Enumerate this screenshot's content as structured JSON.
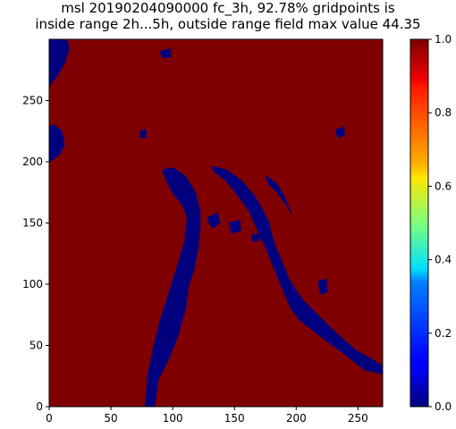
{
  "chart_data": {
    "type": "heatmap",
    "title_line1": "msl 20190204090000 fc_3h, 92.78% gridpoints is",
    "title_line2": "inside range 2h...5h, outside range field max value 44.35",
    "xlim": [
      0,
      270
    ],
    "ylim": [
      0,
      300
    ],
    "x_ticks": [
      0,
      50,
      100,
      150,
      200,
      250
    ],
    "y_ticks": [
      0,
      50,
      100,
      150,
      200,
      250
    ],
    "colorbar": {
      "colormap": "jet",
      "range": [
        0.0,
        1.0
      ],
      "ticks": [
        "0.0",
        "0.2",
        "0.4",
        "0.6",
        "0.8",
        "1.0"
      ]
    },
    "background_value": 1.0,
    "region_value": 0.0,
    "colors": {
      "high": "#7f0000",
      "low": "#00007f"
    },
    "regions_value0": [
      {
        "name": "western-band",
        "polygon": [
          [
            78,
            0
          ],
          [
            85,
            0
          ],
          [
            88,
            22
          ],
          [
            97,
            40
          ],
          [
            104,
            58
          ],
          [
            110,
            80
          ],
          [
            113,
            100
          ],
          [
            117,
            112
          ],
          [
            120,
            128
          ],
          [
            122,
            145
          ],
          [
            122,
            160
          ],
          [
            118,
            175
          ],
          [
            110,
            188
          ],
          [
            100,
            195
          ],
          [
            92,
            193
          ],
          [
            95,
            185
          ],
          [
            100,
            175
          ],
          [
            108,
            165
          ],
          [
            112,
            155
          ],
          [
            110,
            135
          ],
          [
            104,
            115
          ],
          [
            97,
            92
          ],
          [
            90,
            70
          ],
          [
            84,
            45
          ],
          [
            80,
            25
          ]
        ]
      },
      {
        "name": "eastern-band",
        "polygon": [
          [
            270,
            27
          ],
          [
            256,
            30
          ],
          [
            238,
            44
          ],
          [
            222,
            56
          ],
          [
            204,
            70
          ],
          [
            196,
            80
          ],
          [
            190,
            94
          ],
          [
            186,
            104
          ],
          [
            182,
            114
          ],
          [
            178,
            124
          ],
          [
            170,
            142
          ],
          [
            162,
            160
          ],
          [
            152,
            174
          ],
          [
            142,
            186
          ],
          [
            134,
            192
          ],
          [
            132,
            196
          ],
          [
            144,
            193
          ],
          [
            156,
            184
          ],
          [
            166,
            172
          ],
          [
            172,
            162
          ],
          [
            178,
            150
          ],
          [
            180,
            140
          ],
          [
            184,
            128
          ],
          [
            190,
            114
          ],
          [
            194,
            104
          ],
          [
            200,
            94
          ],
          [
            206,
            86
          ],
          [
            214,
            78
          ],
          [
            230,
            62
          ],
          [
            248,
            46
          ],
          [
            262,
            38
          ],
          [
            270,
            33
          ]
        ]
      },
      {
        "name": "eastern-band-tail",
        "polygon": [
          [
            176,
            188
          ],
          [
            184,
            182
          ],
          [
            190,
            172
          ],
          [
            194,
            162
          ],
          [
            196,
            158
          ],
          [
            194,
            162
          ],
          [
            190,
            168
          ],
          [
            184,
            176
          ],
          [
            178,
            182
          ]
        ]
      },
      {
        "name": "top-left-patch",
        "polygon": [
          [
            0,
            300
          ],
          [
            14,
            300
          ],
          [
            16,
            292
          ],
          [
            12,
            280
          ],
          [
            6,
            270
          ],
          [
            0,
            262
          ]
        ]
      },
      {
        "name": "left-blob",
        "polygon": [
          [
            0,
            200
          ],
          [
            8,
            206
          ],
          [
            12,
            214
          ],
          [
            10,
            225
          ],
          [
            4,
            230
          ],
          [
            0,
            228
          ]
        ]
      },
      {
        "name": "small-blob-1",
        "polygon": [
          [
            128,
            154
          ],
          [
            136,
            158
          ],
          [
            138,
            150
          ],
          [
            132,
            146
          ]
        ]
      },
      {
        "name": "small-blob-2",
        "polygon": [
          [
            146,
            150
          ],
          [
            154,
            152
          ],
          [
            155,
            144
          ],
          [
            148,
            142
          ]
        ]
      },
      {
        "name": "small-blob-3",
        "polygon": [
          [
            218,
            102
          ],
          [
            224,
            104
          ],
          [
            225,
            94
          ],
          [
            220,
            92
          ]
        ]
      },
      {
        "name": "small-blob-4",
        "polygon": [
          [
            232,
            226
          ],
          [
            238,
            228
          ],
          [
            239,
            222
          ],
          [
            234,
            220
          ]
        ]
      },
      {
        "name": "small-blob-5",
        "polygon": [
          [
            90,
            290
          ],
          [
            98,
            292
          ],
          [
            98,
            286
          ],
          [
            92,
            285
          ]
        ]
      },
      {
        "name": "small-blob-6",
        "polygon": [
          [
            74,
            225
          ],
          [
            78,
            226
          ],
          [
            78,
            220
          ],
          [
            74,
            220
          ]
        ]
      },
      {
        "name": "small-blob-7",
        "polygon": [
          [
            164,
            140
          ],
          [
            170,
            141
          ],
          [
            170,
            136
          ],
          [
            165,
            135
          ]
        ]
      }
    ]
  }
}
